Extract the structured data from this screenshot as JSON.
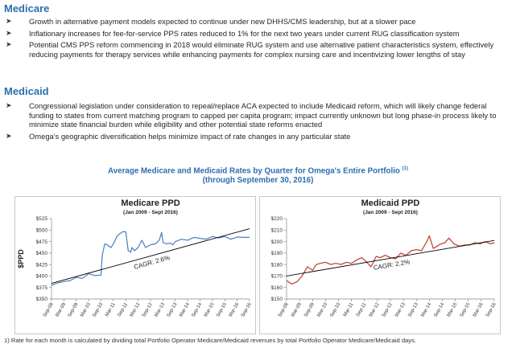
{
  "medicare": {
    "heading": "Medicare",
    "bullets": [
      "Growth in alternative payment models expected to continue under new DHHS/CMS leadership, but at a slower pace",
      "Inflationary increases for fee-for-service PPS rates reduced to 1% for the next two years under current RUG classification system",
      "Potential CMS PPS reform commencing in 2018 would eliminate RUG system and use alternative patient characteristics system, effectively reducing payments for therapy services while enhancing payments for complex nursing care and incentivizing lower lengths of stay"
    ]
  },
  "medicaid": {
    "heading": "Medicaid",
    "bullets": [
      "Congressional legislation under consideration to repeal/replace ACA expected to include Medicaid reform, which will likely change federal funding to states from current matching program to capped per capita program; impact currently unknown but long phase-in process likely to minimize state financial burden while eligibility and other potential state reforms enacted",
      "Omega's geographic diversification helps minimize impact of rate changes in any particular state"
    ]
  },
  "figure": {
    "title_line1": "Average Medicare and Medicaid Rates by Quarter for Omega's Entire Portfolio",
    "title_sup": "(1)",
    "title_line2": "(through September 30, 2016)"
  },
  "chart_data": [
    {
      "type": "line",
      "title": "Medicare PPD",
      "subtitle": "(Jan 2009 - Sept 2016)",
      "ylabel": "$PPD",
      "ylim": [
        350,
        525
      ],
      "yticks": [
        350,
        375,
        400,
        425,
        450,
        475,
        500,
        525
      ],
      "ytick_labels": [
        "$350",
        "$375",
        "$400",
        "$425",
        "$450",
        "$475",
        "$500",
        "$525"
      ],
      "xticks": [
        "Sep-08",
        "Mar-09",
        "Sep-09",
        "Mar-10",
        "Sep-10",
        "Mar-11",
        "Sep-11",
        "Mar-12",
        "Sep-12",
        "Mar-13",
        "Sep-13",
        "Mar-14",
        "Sep-14",
        "Mar-15",
        "Sep-15",
        "Mar-16",
        "Sep-16"
      ],
      "annotation": "CAGR: 2.6%",
      "color": "#4a7fc1",
      "trend_color": "#000000",
      "trend": [
        [
          0,
          384
        ],
        [
          16,
          503
        ]
      ],
      "series": [
        {
          "x": [
            0.0,
            0.5,
            1.0,
            1.5,
            2.0,
            2.5,
            3.0,
            3.5,
            4.0,
            4.1,
            4.3,
            4.5,
            4.8,
            5.0,
            5.3,
            5.5,
            5.8,
            6.0,
            6.2,
            6.4,
            6.5,
            6.7,
            7.0,
            7.3,
            7.6,
            8.0,
            8.4,
            8.7,
            8.9,
            9.0,
            9.3,
            9.6,
            9.8,
            10.0,
            10.5,
            11.0,
            11.5,
            12.0,
            12.5,
            13.0,
            13.5,
            14.0,
            14.5,
            15.0,
            15.5,
            16.0
          ],
          "y": [
            380,
            385,
            388,
            390,
            397,
            395,
            405,
            401,
            402,
            445,
            470,
            468,
            462,
            470,
            487,
            492,
            497,
            496,
            455,
            452,
            462,
            455,
            462,
            478,
            462,
            468,
            470,
            478,
            495,
            473,
            470,
            472,
            468,
            475,
            480,
            478,
            484,
            482,
            480,
            486,
            483,
            486,
            480,
            485,
            484,
            484
          ]
        }
      ]
    },
    {
      "type": "line",
      "title": "Medicaid PPD",
      "subtitle": "(Jan 2009 - Sept 2016)",
      "ylabel": "",
      "ylim": [
        150,
        220
      ],
      "yticks": [
        150,
        160,
        170,
        180,
        190,
        200,
        210,
        220
      ],
      "ytick_labels": [
        "$150",
        "$160",
        "$170",
        "$180",
        "$190",
        "$200",
        "$210",
        "$220"
      ],
      "xticks": [
        "Sep-08",
        "Mar-09",
        "Sep-09",
        "Mar-10",
        "Sep-10",
        "Mar-11",
        "Sep-11",
        "Mar-12",
        "Sep-12",
        "Mar-13",
        "Sep-13",
        "Mar-14",
        "Sep-14",
        "Mar-15",
        "Sep-15",
        "Mar-16",
        "Sep-16"
      ],
      "annotation": "CAGR: 2.2%",
      "color": "#c0392b",
      "trend_color": "#000000",
      "trend": [
        [
          0,
          170
        ],
        [
          16,
          201
        ]
      ],
      "series": [
        {
          "x": [
            0.0,
            0.4,
            0.8,
            1.2,
            1.6,
            2.0,
            2.3,
            2.6,
            3.0,
            3.4,
            3.8,
            4.2,
            4.6,
            5.0,
            5.4,
            5.8,
            6.1,
            6.5,
            6.9,
            7.2,
            7.6,
            8.0,
            8.4,
            8.8,
            9.2,
            9.6,
            10.0,
            10.4,
            10.8,
            11.0,
            11.3,
            11.6,
            11.9,
            12.2,
            12.5,
            12.9,
            13.3,
            13.7,
            14.1,
            14.5,
            14.9,
            15.3,
            15.7,
            16.0
          ],
          "y": [
            166,
            163,
            165,
            170,
            178,
            175,
            180,
            181,
            182,
            180,
            181,
            180,
            182,
            181,
            184,
            186,
            183,
            178,
            187,
            186,
            188,
            186,
            185,
            190,
            188,
            192,
            193,
            192,
            200,
            205,
            194,
            196,
            198,
            199,
            203,
            198,
            196,
            197,
            197,
            199,
            198,
            200,
            198,
            199
          ]
        }
      ]
    }
  ],
  "footnote": "1) Rate for each month is calculated by dividing total Portfolio Operator Medicare/Medicaid revenues by total Portfolio Operator Medicare/Medicaid days."
}
